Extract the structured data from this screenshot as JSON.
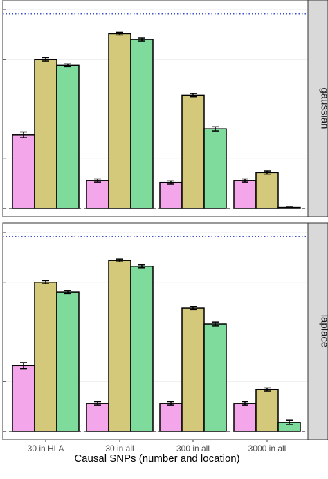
{
  "chart_data": {
    "type": "bar",
    "xlabel": "Causal SNPs (number and location)",
    "categories": [
      "30 in HLA",
      "30 in all",
      "300 in all",
      "3000 in all"
    ],
    "colors": [
      "#f4a6ea",
      "#d4c87a",
      "#7edb9c"
    ],
    "facets": [
      {
        "label": "gaussian",
        "ylim": [
          0,
          1.0
        ],
        "dotted_reference": 0.98,
        "dashed_reference": 0.0,
        "series": [
          {
            "values": [
              0.37,
              0.14,
              0.13,
              0.14
            ],
            "errors": [
              0.015,
              0.008,
              0.008,
              0.008
            ]
          },
          {
            "values": [
              0.75,
              0.88,
              0.57,
              0.18
            ],
            "errors": [
              0.008,
              0.007,
              0.008,
              0.008
            ]
          },
          {
            "values": [
              0.72,
              0.85,
              0.4,
              0.005
            ],
            "errors": [
              0.007,
              0.007,
              0.01,
              0.002
            ]
          }
        ]
      },
      {
        "label": "laplace",
        "ylim": [
          0,
          1.0
        ],
        "dotted_reference": 0.98,
        "dashed_reference": 0.0,
        "series": [
          {
            "values": [
              0.33,
              0.14,
              0.14,
              0.14
            ],
            "errors": [
              0.015,
              0.008,
              0.008,
              0.008
            ]
          },
          {
            "values": [
              0.75,
              0.86,
              0.62,
              0.21
            ],
            "errors": [
              0.008,
              0.007,
              0.008,
              0.008
            ]
          },
          {
            "values": [
              0.7,
              0.83,
              0.54,
              0.045
            ],
            "errors": [
              0.008,
              0.007,
              0.01,
              0.01
            ]
          }
        ]
      }
    ]
  }
}
